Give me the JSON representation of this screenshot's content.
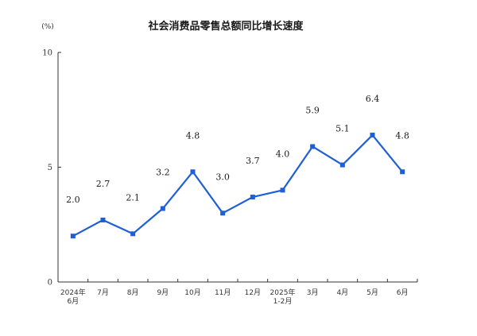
{
  "chart_data": {
    "type": "line",
    "title": "社会消费品零售总额同比增长速度",
    "unit_label": "(%)",
    "ylabel": "",
    "xlabel": "",
    "ylim": [
      0,
      10
    ],
    "yticks": [
      0,
      5,
      10
    ],
    "grid": false,
    "legend": "none",
    "categories": [
      [
        "2024年",
        "6月"
      ],
      [
        "7月"
      ],
      [
        "8月"
      ],
      [
        "9月"
      ],
      [
        "10月"
      ],
      [
        "11月"
      ],
      [
        "12月"
      ],
      [
        "2025年",
        "1-2月"
      ],
      [
        "3月"
      ],
      [
        "4月"
      ],
      [
        "5月"
      ],
      [
        "6月"
      ]
    ],
    "series": [
      {
        "color": "#1f5fd6",
        "values": [
          2.0,
          2.7,
          2.1,
          3.2,
          4.8,
          3.0,
          3.7,
          4.0,
          5.9,
          5.1,
          6.4,
          4.8
        ],
        "data_labels": [
          "2.0",
          "2.7",
          "2.1",
          "3.2",
          "4.8",
          "3.0",
          "3.7",
          "4.0",
          "5.9",
          "5.1",
          "6.4",
          "4.8"
        ]
      }
    ]
  }
}
